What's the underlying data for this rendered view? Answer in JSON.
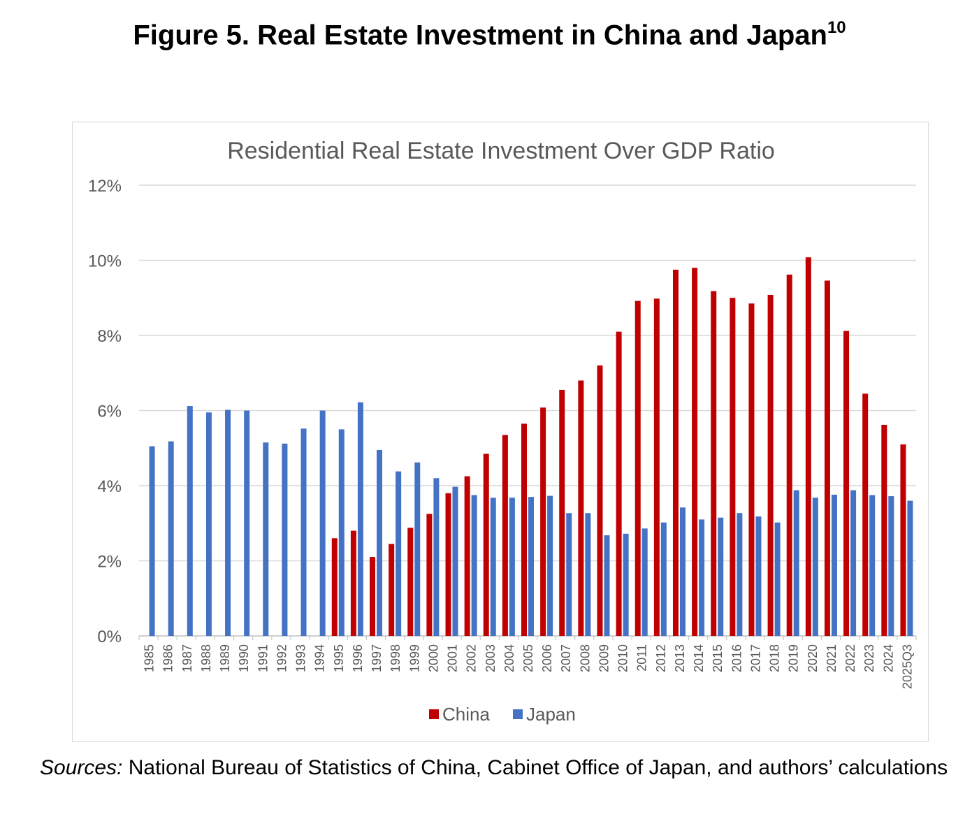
{
  "figure": {
    "title": "Figure 5. Real Estate Investment in China and Japan",
    "title_superscript": "10",
    "sources_label": "Sources:",
    "sources_text": " National Bureau of Statistics of China, Cabinet Office of Japan, and authors’ calculations"
  },
  "chart_data": {
    "type": "bar",
    "title": "Residential Real Estate Investment Over GDP Ratio",
    "xlabel": "",
    "ylabel": "",
    "ylim": [
      0,
      12
    ],
    "yticks": [
      "0%",
      "2%",
      "4%",
      "6%",
      "8%",
      "10%",
      "12%"
    ],
    "grid": true,
    "legend_position": "bottom",
    "categories": [
      "1985",
      "1986",
      "1987",
      "1988",
      "1989",
      "1990",
      "1991",
      "1992",
      "1993",
      "1994",
      "1995",
      "1996",
      "1997",
      "1998",
      "1999",
      "2000",
      "2001",
      "2002",
      "2003",
      "2004",
      "2005",
      "2006",
      "2007",
      "2008",
      "2009",
      "2010",
      "2011",
      "2012",
      "2013",
      "2014",
      "2015",
      "2016",
      "2017",
      "2018",
      "2019",
      "2020",
      "2021",
      "2022",
      "2023",
      "2024",
      "2025Q3"
    ],
    "series": [
      {
        "name": "China",
        "color": "#c00000",
        "values": [
          null,
          null,
          null,
          null,
          null,
          null,
          null,
          null,
          null,
          null,
          2.6,
          2.8,
          2.1,
          2.45,
          2.88,
          3.25,
          3.8,
          4.25,
          4.85,
          5.35,
          5.65,
          6.08,
          6.55,
          6.8,
          7.2,
          8.1,
          8.92,
          8.98,
          9.75,
          9.8,
          9.18,
          9.0,
          8.85,
          9.08,
          9.62,
          10.08,
          9.46,
          8.12,
          6.45,
          5.62,
          5.1
        ]
      },
      {
        "name": "Japan",
        "color": "#4472c4",
        "values": [
          5.05,
          5.18,
          6.12,
          5.95,
          6.02,
          6.0,
          5.15,
          5.12,
          5.52,
          6.0,
          5.5,
          6.22,
          4.95,
          4.38,
          4.62,
          4.2,
          3.97,
          3.75,
          3.68,
          3.68,
          3.7,
          3.73,
          3.27,
          3.27,
          2.68,
          2.72,
          2.86,
          3.02,
          3.42,
          3.1,
          3.15,
          3.27,
          3.18,
          3.02,
          3.88,
          3.68,
          3.76,
          3.88,
          3.75,
          3.72,
          3.6
        ]
      }
    ]
  }
}
